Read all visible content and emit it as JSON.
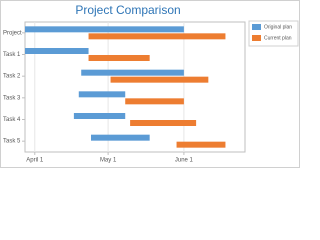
{
  "chart_data": {
    "type": "gantt",
    "title": "Project Comparison",
    "categories": [
      "Project",
      "Task 1",
      "Task 2",
      "Task 3",
      "Task 4",
      "Task 5"
    ],
    "series": [
      {
        "name": "Original plan",
        "color": "#5b9bd5",
        "values": [
          [
            "03-28",
            "06-01"
          ],
          [
            "03-28",
            "04-23"
          ],
          [
            "04-20",
            "06-01"
          ],
          [
            "04-19",
            "05-08"
          ],
          [
            "04-17",
            "05-08"
          ],
          [
            "04-24",
            "05-18"
          ]
        ]
      },
      {
        "name": "Current plan",
        "color": "#ed7d31",
        "values": [
          [
            "04-23",
            "06-18"
          ],
          [
            "04-23",
            "05-18"
          ],
          [
            "05-02",
            "06-11"
          ],
          [
            "05-08",
            "06-01"
          ],
          [
            "05-10",
            "06-06"
          ],
          [
            "05-29",
            "06-18"
          ]
        ]
      }
    ],
    "xlim": [
      "03-28",
      "06-26"
    ],
    "xticks": [
      {
        "value": "04-01",
        "label": "April 1"
      },
      {
        "value": "05-01",
        "label": "May 1"
      },
      {
        "value": "06-01",
        "label": "June 1"
      }
    ],
    "grid": true,
    "legend": "top-right"
  }
}
